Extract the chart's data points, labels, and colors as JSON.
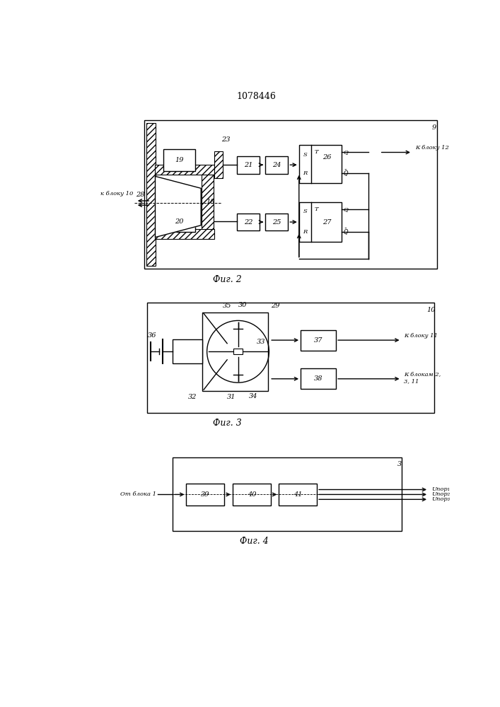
{
  "title": "1078446",
  "fig2_label": "Фиг. 2",
  "fig3_label": "Фиг. 3",
  "fig4_label": "Фиг. 4",
  "bg_color": "#ffffff"
}
